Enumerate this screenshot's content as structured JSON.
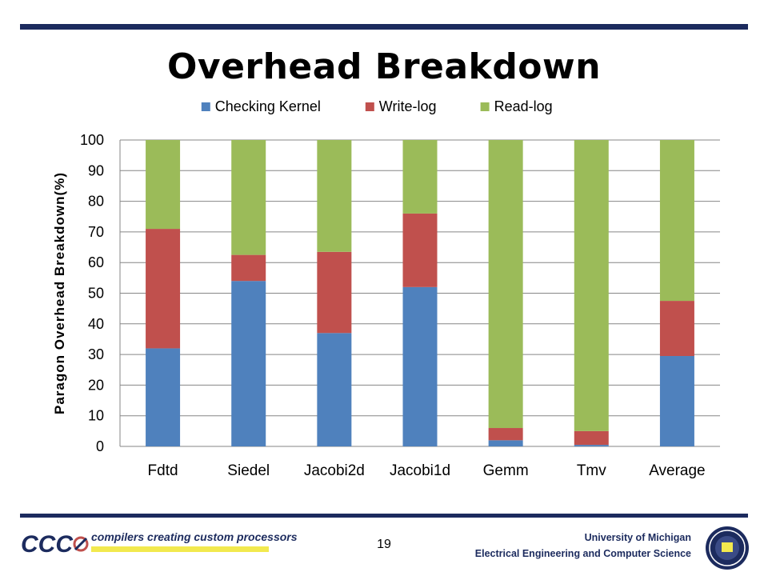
{
  "slide": {
    "title": "Overhead Breakdown",
    "page_number": "19"
  },
  "footer": {
    "logo_text": "CCC",
    "tagline": "compilers creating custom processors",
    "university_line1": "University of Michigan",
    "university_line2": "Electrical Engineering and Computer Science"
  },
  "chart_data": {
    "type": "bar",
    "stacked": true,
    "categories": [
      "Fdtd",
      "Siedel",
      "Jacobi2d",
      "Jacobi1d",
      "Gemm",
      "Tmv",
      "Average"
    ],
    "series": [
      {
        "name": "Checking Kernel",
        "color": "#4f81bd",
        "values": [
          32,
          54,
          37,
          52,
          2,
          0.5,
          29.5
        ]
      },
      {
        "name": "Write-log",
        "color": "#c0504d",
        "values": [
          39,
          8.5,
          26.5,
          24,
          4,
          4.5,
          18
        ]
      },
      {
        "name": "Read-log",
        "color": "#9bbb59",
        "values": [
          29,
          37.5,
          36.5,
          24,
          94,
          95,
          52.5
        ]
      }
    ],
    "ylabel": "Paragon Overhead Breakdown(%)",
    "xlabel": "",
    "ylim": [
      0,
      100
    ],
    "yticks": [
      0,
      10,
      20,
      30,
      40,
      50,
      60,
      70,
      80,
      90,
      100
    ],
    "grid": true,
    "legend_position": "top"
  }
}
